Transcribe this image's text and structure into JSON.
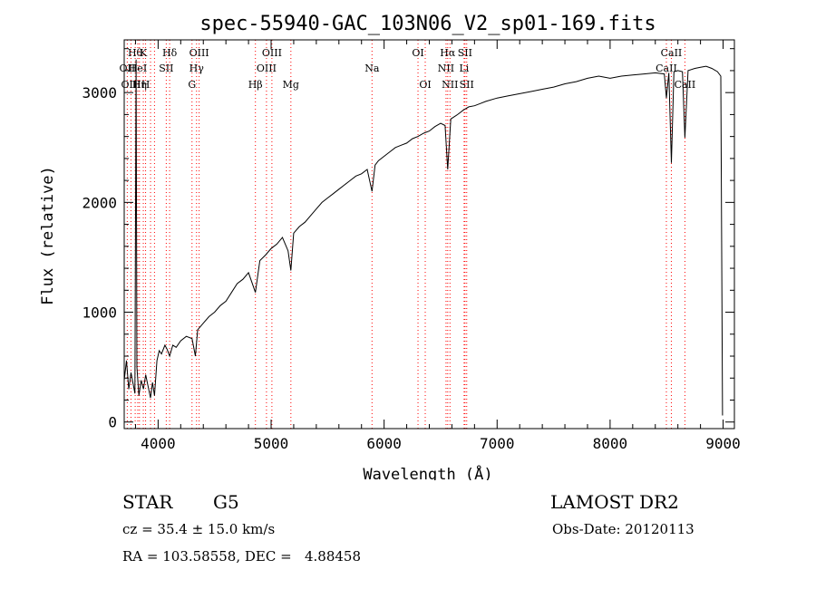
{
  "title": "spec-55940-GAC_103N06_V2_sp01-169.fits",
  "info": {
    "class_label": "STAR",
    "subclass_label": "G5",
    "survey": "LAMOST DR2",
    "cz": "cz = 35.4 ± 15.0 km/s",
    "obs_date": "Obs-Date: 20120113",
    "coords": "RA = 103.58558, DEC =   4.88458"
  },
  "chart_data": {
    "type": "line",
    "title": "spec-55940-GAC_103N06_V2_sp01-169.fits",
    "xlabel": "Wavelength (Å)",
    "ylabel": "Flux (relative)",
    "xlim": [
      3700,
      9100
    ],
    "ylim": [
      -60,
      3480
    ],
    "x_ticks": [
      4000,
      5000,
      6000,
      7000,
      8000,
      9000
    ],
    "x_tick_labels": [
      "4000",
      "5000",
      "6000",
      "7000",
      "8000",
      "9000"
    ],
    "y_ticks": [
      0,
      1000,
      2000,
      3000
    ],
    "y_tick_labels": [
      "0",
      "1000",
      "2000",
      "3000"
    ],
    "grid": false,
    "line_color": "#000000",
    "marker_color": "#ff0000",
    "series": [
      {
        "values": [
          [
            3700,
            380
          ],
          [
            3720,
            560
          ],
          [
            3740,
            300
          ],
          [
            3760,
            450
          ],
          [
            3780,
            340
          ],
          [
            3795,
            260
          ],
          [
            3805,
            3300
          ],
          [
            3812,
            500
          ],
          [
            3830,
            240
          ],
          [
            3850,
            380
          ],
          [
            3870,
            300
          ],
          [
            3890,
            430
          ],
          [
            3910,
            330
          ],
          [
            3933,
            220
          ],
          [
            3950,
            360
          ],
          [
            3968,
            240
          ],
          [
            3990,
            560
          ],
          [
            4010,
            650
          ],
          [
            4030,
            620
          ],
          [
            4060,
            700
          ],
          [
            4080,
            660
          ],
          [
            4102,
            600
          ],
          [
            4130,
            700
          ],
          [
            4160,
            680
          ],
          [
            4200,
            740
          ],
          [
            4250,
            780
          ],
          [
            4300,
            760
          ],
          [
            4330,
            600
          ],
          [
            4350,
            840
          ],
          [
            4400,
            900
          ],
          [
            4450,
            960
          ],
          [
            4500,
            1000
          ],
          [
            4550,
            1060
          ],
          [
            4600,
            1100
          ],
          [
            4650,
            1180
          ],
          [
            4700,
            1260
          ],
          [
            4750,
            1300
          ],
          [
            4800,
            1360
          ],
          [
            4861,
            1180
          ],
          [
            4900,
            1470
          ],
          [
            4950,
            1520
          ],
          [
            5000,
            1580
          ],
          [
            5050,
            1620
          ],
          [
            5100,
            1680
          ],
          [
            5150,
            1560
          ],
          [
            5175,
            1380
          ],
          [
            5200,
            1720
          ],
          [
            5250,
            1780
          ],
          [
            5300,
            1820
          ],
          [
            5350,
            1880
          ],
          [
            5400,
            1940
          ],
          [
            5450,
            2000
          ],
          [
            5500,
            2040
          ],
          [
            5550,
            2080
          ],
          [
            5600,
            2120
          ],
          [
            5650,
            2160
          ],
          [
            5700,
            2200
          ],
          [
            5750,
            2240
          ],
          [
            5800,
            2260
          ],
          [
            5850,
            2300
          ],
          [
            5893,
            2100
          ],
          [
            5920,
            2340
          ],
          [
            5950,
            2380
          ],
          [
            6000,
            2420
          ],
          [
            6050,
            2460
          ],
          [
            6100,
            2500
          ],
          [
            6150,
            2520
          ],
          [
            6200,
            2540
          ],
          [
            6250,
            2580
          ],
          [
            6300,
            2600
          ],
          [
            6350,
            2630
          ],
          [
            6400,
            2650
          ],
          [
            6450,
            2690
          ],
          [
            6500,
            2720
          ],
          [
            6540,
            2700
          ],
          [
            6563,
            2300
          ],
          [
            6590,
            2760
          ],
          [
            6650,
            2800
          ],
          [
            6700,
            2840
          ],
          [
            6750,
            2870
          ],
          [
            6800,
            2880
          ],
          [
            6850,
            2900
          ],
          [
            6900,
            2920
          ],
          [
            7000,
            2950
          ],
          [
            7100,
            2970
          ],
          [
            7200,
            2990
          ],
          [
            7300,
            3010
          ],
          [
            7400,
            3030
          ],
          [
            7500,
            3050
          ],
          [
            7600,
            3080
          ],
          [
            7700,
            3100
          ],
          [
            7800,
            3130
          ],
          [
            7900,
            3150
          ],
          [
            8000,
            3130
          ],
          [
            8100,
            3150
          ],
          [
            8200,
            3160
          ],
          [
            8300,
            3170
          ],
          [
            8400,
            3180
          ],
          [
            8480,
            3170
          ],
          [
            8498,
            2950
          ],
          [
            8520,
            3180
          ],
          [
            8542,
            2360
          ],
          [
            8565,
            3190
          ],
          [
            8600,
            3200
          ],
          [
            8640,
            3190
          ],
          [
            8662,
            2590
          ],
          [
            8690,
            3200
          ],
          [
            8750,
            3220
          ],
          [
            8800,
            3230
          ],
          [
            8850,
            3240
          ],
          [
            8900,
            3220
          ],
          [
            8950,
            3190
          ],
          [
            8980,
            3150
          ],
          [
            8995,
            60
          ]
        ]
      }
    ],
    "lines": [
      {
        "x": 3727,
        "label": "OII",
        "row": 2
      },
      {
        "x": 3760,
        "label": "OIII",
        "row": 3
      },
      {
        "x": 3797,
        "label": "Hθ",
        "row": 1
      },
      {
        "x": 3820,
        "label": "HeI",
        "row": 2
      },
      {
        "x": 3835,
        "label": "Hη",
        "row": 3
      },
      {
        "x": 3869,
        "label": "K",
        "row": 1
      },
      {
        "x": 3889,
        "label": "H",
        "row": 3
      },
      {
        "x": 3933,
        "label": "",
        "row": 0
      },
      {
        "x": 3968,
        "label": "",
        "row": 0
      },
      {
        "x": 4072,
        "label": "SII",
        "row": 2
      },
      {
        "x": 4102,
        "label": "Hδ",
        "row": 1
      },
      {
        "x": 4300,
        "label": "G",
        "row": 3
      },
      {
        "x": 4340,
        "label": "Hγ",
        "row": 2
      },
      {
        "x": 4363,
        "label": "OIII",
        "row": 1
      },
      {
        "x": 4861,
        "label": "Hβ",
        "row": 3
      },
      {
        "x": 4959,
        "label": "OIII",
        "row": 2
      },
      {
        "x": 5007,
        "label": "OIII",
        "row": 1
      },
      {
        "x": 5175,
        "label": "Mg",
        "row": 3
      },
      {
        "x": 5893,
        "label": "Na",
        "row": 2
      },
      {
        "x": 6300,
        "label": "OI",
        "row": 1
      },
      {
        "x": 6364,
        "label": "OI",
        "row": 3
      },
      {
        "x": 6548,
        "label": "NII",
        "row": 2
      },
      {
        "x": 6563,
        "label": "Hα",
        "row": 1
      },
      {
        "x": 6583,
        "label": "NII",
        "row": 3
      },
      {
        "x": 6708,
        "label": "Li",
        "row": 2
      },
      {
        "x": 6716,
        "label": "SII",
        "row": 1
      },
      {
        "x": 6731,
        "label": "SII",
        "row": 3
      },
      {
        "x": 8498,
        "label": "CaII",
        "row": 2
      },
      {
        "x": 8542,
        "label": "CaII",
        "row": 1
      },
      {
        "x": 8662,
        "label": "CaII",
        "row": 3
      }
    ]
  }
}
